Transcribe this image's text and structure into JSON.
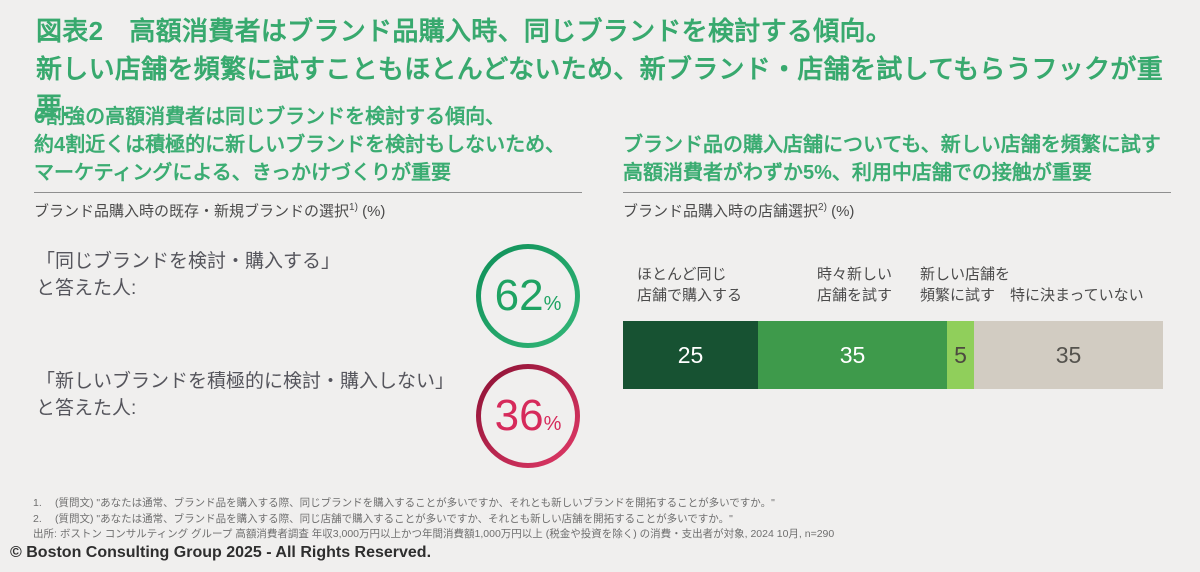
{
  "page": {
    "background": "#F0EFEE",
    "accent_green": "#38A96E"
  },
  "header": {
    "exhibit_label": "図表2",
    "title_line1": "高額消費者はブランド品購入時、同じブランドを検討する傾向。",
    "title_line2": "新しい店舗を頻繁に試すこともほとんどないため、新ブランド・店舗を試してもらうフックが重要."
  },
  "left_panel": {
    "headline_lines": [
      "6割強の高額消費者は同じブランドを検討する傾向、",
      "約4割近くは積極的に新しいブランドを検討もしないため、",
      "マーケティングによる、きっかけづくりが重要"
    ],
    "axis_label": "ブランド品購入時の既存・新規ブランドの選択",
    "axis_label_sup": "1)",
    "axis_label_unit": " (%)",
    "stats": [
      {
        "line1": "「同じブランドを検討・購入する」",
        "line2": "と答えた人:",
        "value": "62",
        "unit": "%",
        "ring_from": "#0E8F58",
        "ring_to": "#33B778",
        "value_color": "#1FA363"
      },
      {
        "line1": "「新しいブランドを積極的に検討・購入しない」",
        "line2": "と答えた人:",
        "value": "36",
        "unit": "%",
        "ring_from": "#8A1033",
        "ring_to": "#E23A68",
        "value_color": "#D62A5B"
      }
    ]
  },
  "right_panel": {
    "headline_lines": [
      "ブランド品の購入店舗についても、新しい店舗を頻繁に試す",
      "高額消費者がわずか5%、利用中店舗での接触が重要"
    ],
    "axis_label": "ブランド品購入時の店舗選択",
    "axis_label_sup": "2)",
    "axis_label_unit": " (%)",
    "bar": {
      "segments": [
        {
          "label_line1": "ほとんど同じ",
          "label_line2": "店舗で購入する",
          "value": 25,
          "color": "#175232",
          "text_color": "#FFFFFF"
        },
        {
          "label_line1": "時々新しい",
          "label_line2": "店舗を試す",
          "value": 35,
          "color": "#3E9A4B",
          "text_color": "#FFFFFF"
        },
        {
          "label_line1": "新しい店舗を",
          "label_line2": "頻繁に試す",
          "value": 5,
          "color": "#90CF5B",
          "text_color": "#4D4A40"
        },
        {
          "label_line1": "特に決まっていない",
          "label_line2": "",
          "value": 35,
          "color": "#D2CCC2",
          "text_color": "#55534E"
        }
      ]
    }
  },
  "footnotes": [
    {
      "num": "1.",
      "text": "(質問文) \"あなたは通常、ブランド品を購入する際、同じブランドを購入することが多いですか、それとも新しいブランドを開拓することが多いですか。\""
    },
    {
      "num": "2.",
      "text": "(質問文) \"あなたは通常、ブランド品を購入する際、同じ店舗で購入することが多いですか、それとも新しい店舗を開拓することが多いですか。\""
    }
  ],
  "source": "出所: ボストン コンサルティング グループ 高額消費者調査 年収3,000万円以上かつ年間消費額1,000万円以上 (税金や投資を除く) の消費・支出者が対象, 2024 10月, n=290",
  "copyright": "© Boston Consulting Group 2025 - All Rights Reserved.",
  "chart_data": [
    {
      "type": "pie",
      "subtype": "kpi-circles",
      "title": "ブランド品購入時の既存・新規ブランドの選択1) (%)",
      "unit": "%",
      "items": [
        {
          "label": "「同じブランドを検討・購入する」と答えた人",
          "value": 62,
          "color": "#1FA05F"
        },
        {
          "label": "「新しいブランドを積極的に検討・購入しない」と答えた人",
          "value": 36,
          "color": "#C4123F"
        }
      ]
    },
    {
      "type": "bar",
      "subtype": "stacked-horizontal-100",
      "title": "ブランド品購入時の店舗選択2) (%)",
      "unit": "%",
      "categories": [
        "ほとんど同じ店舗で購入する",
        "時々新しい店舗を試す",
        "新しい店舗を頻繁に試す",
        "特に決まっていない"
      ],
      "values": [
        25,
        35,
        5,
        35
      ],
      "colors": [
        "#175232",
        "#3E9A4B",
        "#90CF5B",
        "#D2CCC2"
      ],
      "xlim": [
        0,
        100
      ],
      "legend_position": "above-bar",
      "grid": false
    }
  ]
}
